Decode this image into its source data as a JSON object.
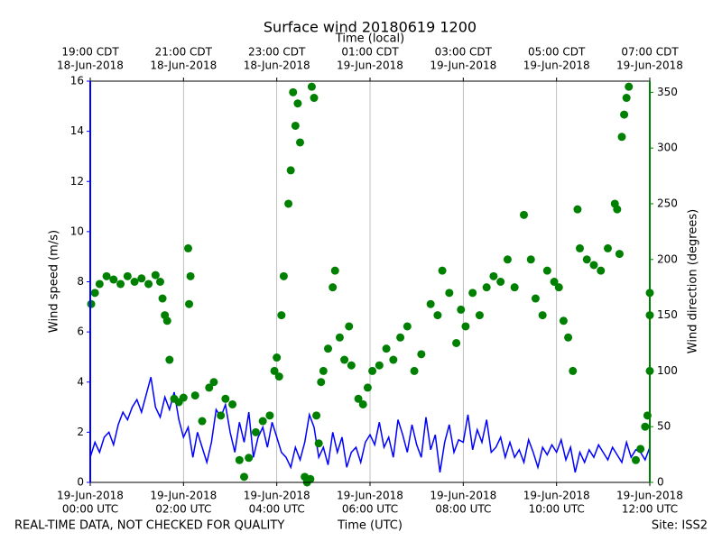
{
  "chart_data": {
    "type": "line",
    "title": "Surface wind 20180619 1200",
    "x2_label": "Time (local)",
    "x_label": "Time (UTC)",
    "y_label": "Wind speed (m/s)",
    "y2_label": "Wind direction (degrees)",
    "footer_left": "REAL-TIME DATA, NOT CHECKED FOR QUALITY",
    "footer_right": "Site: ISS2",
    "xlim": [
      0,
      12
    ],
    "xticks": [
      {
        "value": 0,
        "label": [
          "19-Jun-2018",
          "00:00 UTC"
        ]
      },
      {
        "value": 2,
        "label": [
          "19-Jun-2018",
          "02:00 UTC"
        ]
      },
      {
        "value": 4,
        "label": [
          "19-Jun-2018",
          "04:00 UTC"
        ]
      },
      {
        "value": 6,
        "label": [
          "19-Jun-2018",
          "06:00 UTC"
        ]
      },
      {
        "value": 8,
        "label": [
          "19-Jun-2018",
          "08:00 UTC"
        ]
      },
      {
        "value": 10,
        "label": [
          "19-Jun-2018",
          "10:00 UTC"
        ]
      },
      {
        "value": 12,
        "label": [
          "19-Jun-2018",
          "12:00 UTC"
        ]
      }
    ],
    "x2lim": [
      0,
      12
    ],
    "x2ticks": [
      {
        "value": 0,
        "label": [
          "19:00 CDT",
          "18-Jun-2018"
        ]
      },
      {
        "value": 2,
        "label": [
          "21:00 CDT",
          "18-Jun-2018"
        ]
      },
      {
        "value": 4,
        "label": [
          "23:00 CDT",
          "18-Jun-2018"
        ]
      },
      {
        "value": 6,
        "label": [
          "01:00 CDT",
          "19-Jun-2018"
        ]
      },
      {
        "value": 8,
        "label": [
          "03:00 CDT",
          "19-Jun-2018"
        ]
      },
      {
        "value": 10,
        "label": [
          "05:00 CDT",
          "19-Jun-2018"
        ]
      },
      {
        "value": 12,
        "label": [
          "07:00 CDT",
          "19-Jun-2018"
        ]
      }
    ],
    "ylim": [
      0,
      16
    ],
    "yticks": [
      0,
      2,
      4,
      6,
      8,
      10,
      12,
      14,
      16
    ],
    "y2lim": [
      0,
      360
    ],
    "y2ticks": [
      0,
      50,
      100,
      150,
      200,
      250,
      300,
      350
    ],
    "y_color": "#0000ff",
    "y2_color": "#008000",
    "grid": true,
    "series": [
      {
        "type": "line",
        "color": "#0000ff",
        "axis": "y",
        "x": [
          0,
          0.1,
          0.2,
          0.3,
          0.4,
          0.5,
          0.6,
          0.7,
          0.8,
          0.9,
          1,
          1.1,
          1.2,
          1.3,
          1.4,
          1.5,
          1.6,
          1.7,
          1.8,
          1.9,
          2,
          2.1,
          2.2,
          2.3,
          2.4,
          2.5,
          2.6,
          2.7,
          2.8,
          2.9,
          3,
          3.1,
          3.2,
          3.3,
          3.4,
          3.5,
          3.6,
          3.7,
          3.8,
          3.9,
          4,
          4.1,
          4.2,
          4.3,
          4.4,
          4.5,
          4.6,
          4.7,
          4.8,
          4.9,
          5,
          5.1,
          5.2,
          5.3,
          5.4,
          5.5,
          5.6,
          5.7,
          5.8,
          5.9,
          6,
          6.1,
          6.2,
          6.3,
          6.4,
          6.5,
          6.6,
          6.7,
          6.8,
          6.9,
          7,
          7.1,
          7.2,
          7.3,
          7.4,
          7.5,
          7.6,
          7.7,
          7.8,
          7.9,
          8,
          8.1,
          8.2,
          8.3,
          8.4,
          8.5,
          8.6,
          8.7,
          8.8,
          8.9,
          9,
          9.1,
          9.2,
          9.3,
          9.4,
          9.5,
          9.6,
          9.7,
          9.8,
          9.9,
          10,
          10.1,
          10.2,
          10.3,
          10.4,
          10.5,
          10.6,
          10.7,
          10.8,
          10.9,
          11,
          11.1,
          11.2,
          11.3,
          11.4,
          11.5,
          11.6,
          11.7,
          11.8,
          11.9,
          12
        ],
        "values": [
          1.0,
          1.6,
          1.2,
          1.8,
          2.0,
          1.5,
          2.3,
          2.8,
          2.5,
          3.0,
          3.3,
          2.8,
          3.5,
          4.2,
          3.0,
          2.6,
          3.4,
          2.9,
          3.6,
          2.5,
          1.8,
          2.2,
          1.0,
          2.0,
          1.4,
          0.8,
          1.6,
          2.9,
          2.6,
          3.1,
          2.0,
          1.2,
          2.4,
          1.6,
          2.8,
          1.0,
          1.8,
          2.2,
          1.4,
          2.4,
          1.8,
          1.2,
          1.0,
          0.6,
          1.4,
          0.9,
          1.6,
          2.7,
          2.2,
          1.0,
          1.4,
          0.7,
          2.0,
          1.2,
          1.8,
          0.6,
          1.2,
          1.4,
          0.8,
          1.6,
          1.9,
          1.5,
          2.4,
          1.4,
          1.8,
          1.0,
          2.5,
          1.9,
          1.2,
          2.3,
          1.5,
          1.0,
          2.6,
          1.3,
          1.9,
          0.4,
          1.6,
          2.3,
          1.2,
          1.7,
          1.6,
          2.7,
          1.3,
          2.1,
          1.6,
          2.5,
          1.2,
          1.4,
          1.8,
          1.0,
          1.6,
          1.0,
          1.3,
          0.8,
          1.7,
          1.2,
          0.6,
          1.4,
          1.1,
          1.5,
          1.2,
          1.7,
          0.9,
          1.4,
          0.4,
          1.2,
          0.8,
          1.3,
          1.0,
          1.5,
          1.2,
          0.9,
          1.4,
          1.1,
          0.8,
          1.6,
          1.0,
          1.3,
          1.2,
          0.9,
          1.4
        ]
      },
      {
        "type": "scatter",
        "color": "#008000",
        "axis": "y2",
        "x": [
          0.02,
          0.1,
          0.2,
          0.35,
          0.5,
          0.65,
          0.8,
          0.95,
          1.1,
          1.25,
          1.4,
          1.5,
          1.55,
          1.6,
          1.65,
          1.7,
          1.8,
          1.9,
          2.0,
          2.1,
          2.12,
          2.15,
          2.25,
          2.4,
          2.55,
          2.65,
          2.8,
          2.9,
          3.05,
          3.2,
          3.3,
          3.4,
          3.55,
          3.7,
          3.85,
          3.95,
          4.0,
          4.05,
          4.1,
          4.15,
          4.25,
          4.3,
          4.35,
          4.4,
          4.45,
          4.5,
          4.6,
          4.65,
          4.72,
          4.75,
          4.8,
          4.85,
          4.9,
          4.95,
          5.0,
          5.1,
          5.2,
          5.25,
          5.35,
          5.45,
          5.55,
          5.6,
          5.75,
          5.85,
          5.95,
          6.05,
          6.2,
          6.35,
          6.5,
          6.65,
          6.8,
          6.95,
          7.1,
          7.3,
          7.45,
          7.55,
          7.7,
          7.85,
          7.95,
          8.05,
          8.2,
          8.35,
          8.5,
          8.65,
          8.8,
          8.95,
          9.1,
          9.3,
          9.45,
          9.55,
          9.7,
          9.8,
          9.95,
          10.05,
          10.15,
          10.25,
          10.35,
          10.45,
          10.5,
          10.65,
          10.8,
          10.95,
          11.1,
          11.25,
          11.3,
          11.35,
          11.4,
          11.45,
          11.5,
          11.55,
          11.7,
          11.8,
          11.9,
          11.95,
          12.0,
          12.0,
          12.0
        ],
        "values": [
          160,
          170,
          178,
          185,
          182,
          178,
          185,
          180,
          183,
          178,
          186,
          180,
          165,
          150,
          145,
          110,
          75,
          72,
          76,
          210,
          160,
          185,
          78,
          55,
          85,
          90,
          60,
          75,
          70,
          20,
          5,
          22,
          45,
          55,
          60,
          100,
          112,
          95,
          150,
          185,
          250,
          280,
          350,
          320,
          340,
          305,
          5,
          0,
          3,
          355,
          345,
          60,
          35,
          90,
          100,
          120,
          175,
          190,
          130,
          110,
          140,
          105,
          75,
          70,
          85,
          100,
          105,
          120,
          110,
          130,
          140,
          100,
          115,
          160,
          150,
          190,
          170,
          125,
          155,
          140,
          170,
          150,
          175,
          185,
          180,
          200,
          175,
          240,
          200,
          165,
          150,
          190,
          180,
          175,
          145,
          130,
          100,
          245,
          210,
          200,
          195,
          190,
          210,
          250,
          245,
          205,
          310,
          330,
          345,
          355,
          20,
          30,
          50,
          60,
          100,
          150,
          170
        ]
      }
    ]
  }
}
